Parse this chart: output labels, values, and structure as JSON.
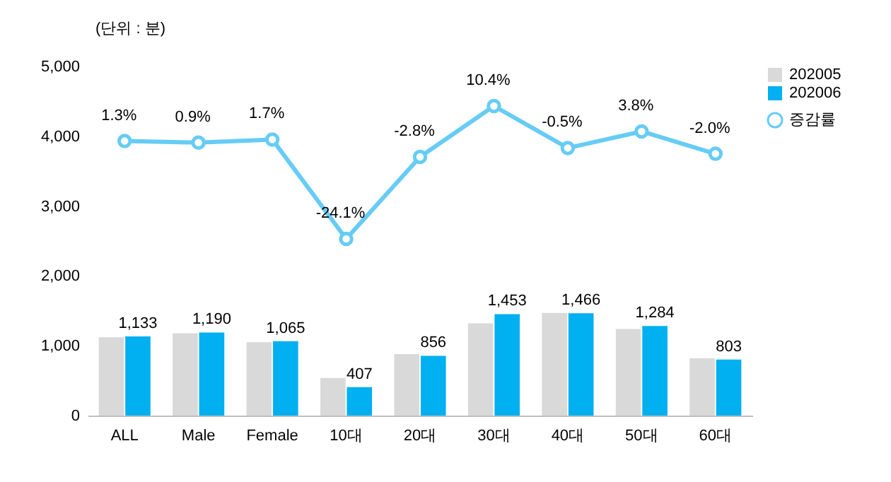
{
  "chart_data": {
    "type": "bar",
    "ylabel": "(단위 : 분)",
    "categories": [
      "ALL",
      "Male",
      "Female",
      "10대",
      "20대",
      "30대",
      "40대",
      "50대",
      "60대"
    ],
    "ylim": [
      0,
      5000
    ],
    "yticks": [
      0,
      {
        "value": 1000,
        "label": "1,000"
      },
      {
        "value": 2000,
        "label": "2,000"
      },
      {
        "value": 3000,
        "label": "3,000"
      },
      {
        "value": 4000,
        "label": "4,000"
      },
      {
        "value": 5000,
        "label": "5,000"
      }
    ],
    "legend": "right",
    "marker": "circle",
    "series": [
      {
        "name": "202005",
        "color": "#d9d9d9",
        "values": [
          1120,
          1180,
          1050,
          540,
          880,
          1320,
          1470,
          1240,
          820
        ]
      },
      {
        "name": "202006",
        "color": "#00b0f0",
        "values": [
          1133,
          1190,
          1065,
          407,
          856,
          1453,
          1466,
          1284,
          803
        ],
        "value_labels": [
          "1,133",
          "1,190",
          "1,065",
          "407",
          "856",
          "1,453",
          "1,466",
          "1,284",
          "803"
        ]
      },
      {
        "name": "증감률",
        "type": "line",
        "axis": "y2",
        "color": "#66ccf5",
        "values": [
          1.3,
          0.9,
          1.7,
          -24.1,
          -2.8,
          10.4,
          -0.5,
          3.8,
          -2.0
        ],
        "value_labels": [
          "1.3%",
          "0.9%",
          "1.7%",
          "-24.1%",
          "-2.8%",
          "10.4%",
          "-0.5%",
          "3.8%",
          "-2.0%"
        ]
      }
    ]
  }
}
